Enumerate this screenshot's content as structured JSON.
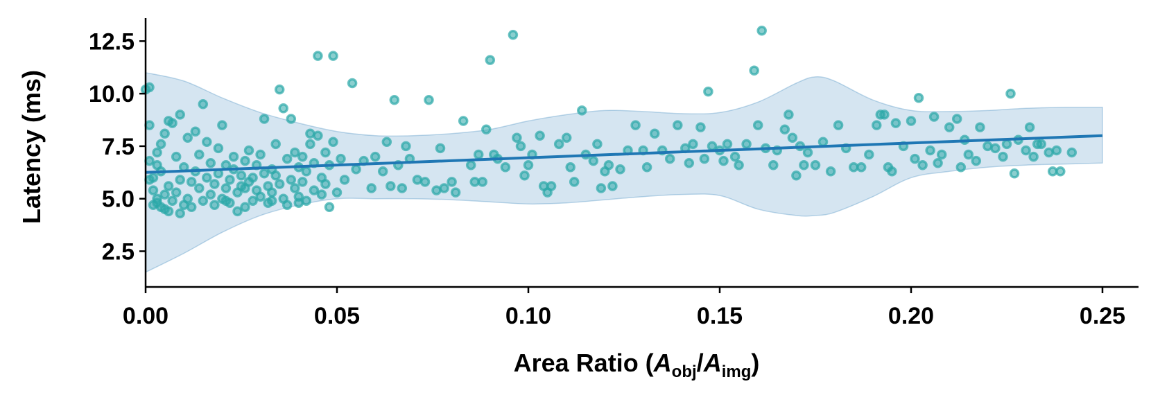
{
  "chart_data": {
    "type": "scatter",
    "title": "",
    "xlabel": "Area Ratio (A_obj/A_img)",
    "xlabel_parts": {
      "prefix": "Area Ratio (",
      "A1": "A",
      "sub1": "obj",
      "slash": "/",
      "A2": "A",
      "sub2": "img",
      "suffix": ")"
    },
    "ylabel": "Latency (ms)",
    "xlim": [
      0.0,
      0.26
    ],
    "ylim": [
      0.8,
      13.6
    ],
    "xticks": [
      0.0,
      0.05,
      0.1,
      0.15,
      0.2,
      0.25
    ],
    "xtick_labels": [
      "0.00",
      "0.05",
      "0.10",
      "0.15",
      "0.20",
      "0.25"
    ],
    "yticks": [
      2.5,
      5.0,
      7.5,
      10.0,
      12.5
    ],
    "ytick_labels": [
      "2.5",
      "5.0",
      "7.5",
      "10.0",
      "12.5"
    ],
    "grid": false,
    "colors": {
      "points": "#2ba8a8",
      "line": "#1f77b4",
      "band": "#1f77b4"
    },
    "regression": {
      "x": [
        0.0,
        0.25
      ],
      "y": [
        6.25,
        8.0
      ]
    },
    "confidence_band": {
      "x": [
        0.0,
        0.01,
        0.02,
        0.03,
        0.04,
        0.05,
        0.06,
        0.07,
        0.08,
        0.09,
        0.1,
        0.11,
        0.12,
        0.13,
        0.14,
        0.15,
        0.16,
        0.17,
        0.175,
        0.18,
        0.19,
        0.2,
        0.21,
        0.22,
        0.23,
        0.24,
        0.25
      ],
      "upper": [
        11.0,
        10.6,
        9.8,
        9.1,
        8.6,
        8.2,
        8.0,
        8.0,
        8.1,
        8.3,
        8.7,
        9.0,
        9.2,
        9.15,
        9.05,
        9.1,
        9.6,
        10.5,
        10.8,
        10.6,
        9.7,
        9.2,
        9.15,
        9.2,
        9.3,
        9.35,
        9.35
      ],
      "lower": [
        1.5,
        2.4,
        3.4,
        4.2,
        4.7,
        5.0,
        5.0,
        5.0,
        4.95,
        4.85,
        4.75,
        4.8,
        4.95,
        5.1,
        5.2,
        5.15,
        4.5,
        4.2,
        4.2,
        4.35,
        5.1,
        6.0,
        6.3,
        6.5,
        6.6,
        6.65,
        6.7
      ]
    },
    "series": [
      {
        "name": "samples",
        "points": [
          [
            0.0,
            10.2
          ],
          [
            0.001,
            10.3
          ],
          [
            0.001,
            8.5
          ],
          [
            0.001,
            6.8
          ],
          [
            0.002,
            6.0
          ],
          [
            0.002,
            5.4
          ],
          [
            0.003,
            5.0
          ],
          [
            0.003,
            4.8
          ],
          [
            0.004,
            4.6
          ],
          [
            0.004,
            6.3
          ],
          [
            0.005,
            5.2
          ],
          [
            0.005,
            4.5
          ],
          [
            0.006,
            5.6
          ],
          [
            0.006,
            4.4
          ],
          [
            0.007,
            4.9
          ],
          [
            0.008,
            5.3
          ],
          [
            0.008,
            7.0
          ],
          [
            0.009,
            5.9
          ],
          [
            0.009,
            4.3
          ],
          [
            0.01,
            6.5
          ],
          [
            0.003,
            7.2
          ],
          [
            0.004,
            7.6
          ],
          [
            0.005,
            8.1
          ],
          [
            0.006,
            8.7
          ],
          [
            0.007,
            8.6
          ],
          [
            0.009,
            9.0
          ],
          [
            0.011,
            7.9
          ],
          [
            0.011,
            5.0
          ],
          [
            0.012,
            5.8
          ],
          [
            0.012,
            4.6
          ],
          [
            0.013,
            6.3
          ],
          [
            0.013,
            8.2
          ],
          [
            0.014,
            5.5
          ],
          [
            0.014,
            7.1
          ],
          [
            0.015,
            9.5
          ],
          [
            0.015,
            4.9
          ],
          [
            0.016,
            6.0
          ],
          [
            0.016,
            7.7
          ],
          [
            0.017,
            5.2
          ],
          [
            0.017,
            6.7
          ],
          [
            0.018,
            5.7
          ],
          [
            0.018,
            4.7
          ],
          [
            0.019,
            6.2
          ],
          [
            0.019,
            7.4
          ],
          [
            0.02,
            5.0
          ],
          [
            0.02,
            8.5
          ],
          [
            0.021,
            5.5
          ],
          [
            0.021,
            6.6
          ],
          [
            0.022,
            4.8
          ],
          [
            0.022,
            5.9
          ],
          [
            0.023,
            6.4
          ],
          [
            0.023,
            7.0
          ],
          [
            0.024,
            5.3
          ],
          [
            0.024,
            4.4
          ],
          [
            0.025,
            6.1
          ],
          [
            0.025,
            5.6
          ],
          [
            0.026,
            4.6
          ],
          [
            0.026,
            6.8
          ],
          [
            0.027,
            5.8
          ],
          [
            0.027,
            7.3
          ],
          [
            0.028,
            4.9
          ],
          [
            0.028,
            6.0
          ],
          [
            0.029,
            5.4
          ],
          [
            0.029,
            6.6
          ],
          [
            0.03,
            5.1
          ],
          [
            0.03,
            7.1
          ],
          [
            0.031,
            8.8
          ],
          [
            0.031,
            6.2
          ],
          [
            0.032,
            5.6
          ],
          [
            0.032,
            4.8
          ],
          [
            0.033,
            6.4
          ],
          [
            0.033,
            5.3
          ],
          [
            0.034,
            7.6
          ],
          [
            0.034,
            6.1
          ],
          [
            0.035,
            5.7
          ],
          [
            0.035,
            10.2
          ],
          [
            0.036,
            9.3
          ],
          [
            0.036,
            5.0
          ],
          [
            0.037,
            6.9
          ],
          [
            0.037,
            4.7
          ],
          [
            0.038,
            5.9
          ],
          [
            0.038,
            8.8
          ],
          [
            0.039,
            7.2
          ],
          [
            0.039,
            5.5
          ],
          [
            0.04,
            6.5
          ],
          [
            0.04,
            5.1
          ],
          [
            0.041,
            7.0
          ],
          [
            0.041,
            5.8
          ],
          [
            0.042,
            6.3
          ],
          [
            0.042,
            4.9
          ],
          [
            0.043,
            8.1
          ],
          [
            0.043,
            7.6
          ],
          [
            0.044,
            5.4
          ],
          [
            0.044,
            6.7
          ],
          [
            0.045,
            11.8
          ],
          [
            0.045,
            8.0
          ],
          [
            0.046,
            6.0
          ],
          [
            0.046,
            5.2
          ],
          [
            0.047,
            7.2
          ],
          [
            0.047,
            5.7
          ],
          [
            0.048,
            4.6
          ],
          [
            0.048,
            6.6
          ],
          [
            0.049,
            11.8
          ],
          [
            0.049,
            7.7
          ],
          [
            0.05,
            5.3
          ],
          [
            0.051,
            6.9
          ],
          [
            0.052,
            5.9
          ],
          [
            0.054,
            10.5
          ],
          [
            0.055,
            6.4
          ],
          [
            0.057,
            6.8
          ],
          [
            0.059,
            5.5
          ],
          [
            0.06,
            7.0
          ],
          [
            0.062,
            6.3
          ],
          [
            0.063,
            7.7
          ],
          [
            0.064,
            5.6
          ],
          [
            0.065,
            9.7
          ],
          [
            0.066,
            6.6
          ],
          [
            0.067,
            5.5
          ],
          [
            0.068,
            7.5
          ],
          [
            0.069,
            6.9
          ],
          [
            0.071,
            5.9
          ],
          [
            0.073,
            5.8
          ],
          [
            0.074,
            9.7
          ],
          [
            0.076,
            5.4
          ],
          [
            0.077,
            7.4
          ],
          [
            0.078,
            5.5
          ],
          [
            0.08,
            5.8
          ],
          [
            0.081,
            5.3
          ],
          [
            0.083,
            8.7
          ],
          [
            0.085,
            6.6
          ],
          [
            0.086,
            5.8
          ],
          [
            0.087,
            7.1
          ],
          [
            0.088,
            5.8
          ],
          [
            0.089,
            8.3
          ],
          [
            0.09,
            11.6
          ],
          [
            0.091,
            7.1
          ],
          [
            0.092,
            6.9
          ],
          [
            0.094,
            6.5
          ],
          [
            0.096,
            12.8
          ],
          [
            0.097,
            7.9
          ],
          [
            0.098,
            7.5
          ],
          [
            0.099,
            6.1
          ],
          [
            0.1,
            6.6
          ],
          [
            0.101,
            7.1
          ],
          [
            0.103,
            8.0
          ],
          [
            0.104,
            5.6
          ],
          [
            0.105,
            5.3
          ],
          [
            0.106,
            5.6
          ],
          [
            0.108,
            7.6
          ],
          [
            0.11,
            7.9
          ],
          [
            0.111,
            6.5
          ],
          [
            0.112,
            5.8
          ],
          [
            0.114,
            9.2
          ],
          [
            0.115,
            7.1
          ],
          [
            0.117,
            6.8
          ],
          [
            0.118,
            7.6
          ],
          [
            0.119,
            5.5
          ],
          [
            0.12,
            6.3
          ],
          [
            0.121,
            6.6
          ],
          [
            0.122,
            5.6
          ],
          [
            0.124,
            6.4
          ],
          [
            0.126,
            7.3
          ],
          [
            0.128,
            8.5
          ],
          [
            0.13,
            7.3
          ],
          [
            0.131,
            6.5
          ],
          [
            0.133,
            8.1
          ],
          [
            0.135,
            7.3
          ],
          [
            0.137,
            6.9
          ],
          [
            0.139,
            8.5
          ],
          [
            0.141,
            7.4
          ],
          [
            0.142,
            6.7
          ],
          [
            0.143,
            7.6
          ],
          [
            0.145,
            8.4
          ],
          [
            0.146,
            6.9
          ],
          [
            0.147,
            10.1
          ],
          [
            0.148,
            7.5
          ],
          [
            0.15,
            7.3
          ],
          [
            0.151,
            6.8
          ],
          [
            0.152,
            7.6
          ],
          [
            0.154,
            7.0
          ],
          [
            0.155,
            6.6
          ],
          [
            0.157,
            7.6
          ],
          [
            0.159,
            11.1
          ],
          [
            0.16,
            8.5
          ],
          [
            0.161,
            13.0
          ],
          [
            0.162,
            7.4
          ],
          [
            0.164,
            6.6
          ],
          [
            0.165,
            7.3
          ],
          [
            0.167,
            8.3
          ],
          [
            0.168,
            9.0
          ],
          [
            0.169,
            7.9
          ],
          [
            0.17,
            6.1
          ],
          [
            0.171,
            7.5
          ],
          [
            0.172,
            6.6
          ],
          [
            0.173,
            7.2
          ],
          [
            0.175,
            6.6
          ],
          [
            0.177,
            7.7
          ],
          [
            0.179,
            6.3
          ],
          [
            0.181,
            8.5
          ],
          [
            0.183,
            7.4
          ],
          [
            0.185,
            6.5
          ],
          [
            0.187,
            6.5
          ],
          [
            0.189,
            7.1
          ],
          [
            0.191,
            8.5
          ],
          [
            0.192,
            9.0
          ],
          [
            0.193,
            9.0
          ],
          [
            0.194,
            6.5
          ],
          [
            0.195,
            6.3
          ],
          [
            0.196,
            8.6
          ],
          [
            0.198,
            7.5
          ],
          [
            0.2,
            8.7
          ],
          [
            0.201,
            6.9
          ],
          [
            0.202,
            9.8
          ],
          [
            0.203,
            6.6
          ],
          [
            0.205,
            7.3
          ],
          [
            0.206,
            8.9
          ],
          [
            0.207,
            6.7
          ],
          [
            0.208,
            7.1
          ],
          [
            0.21,
            8.4
          ],
          [
            0.212,
            8.8
          ],
          [
            0.213,
            6.5
          ],
          [
            0.214,
            7.8
          ],
          [
            0.215,
            7.1
          ],
          [
            0.217,
            6.8
          ],
          [
            0.218,
            8.4
          ],
          [
            0.22,
            7.5
          ],
          [
            0.222,
            7.4
          ],
          [
            0.224,
            7.0
          ],
          [
            0.225,
            7.6
          ],
          [
            0.226,
            10.0
          ],
          [
            0.227,
            6.2
          ],
          [
            0.228,
            7.8
          ],
          [
            0.23,
            7.3
          ],
          [
            0.231,
            8.4
          ],
          [
            0.232,
            7.0
          ],
          [
            0.233,
            7.6
          ],
          [
            0.234,
            7.6
          ],
          [
            0.236,
            7.2
          ],
          [
            0.237,
            6.3
          ],
          [
            0.238,
            7.3
          ],
          [
            0.239,
            6.3
          ],
          [
            0.242,
            7.2
          ],
          [
            0.001,
            5.9
          ],
          [
            0.002,
            4.7
          ],
          [
            0.003,
            6.6
          ],
          [
            0.01,
            4.7
          ],
          [
            0.021,
            4.9
          ],
          [
            0.026,
            5.5
          ],
          [
            0.033,
            4.9
          ],
          [
            0.04,
            4.8
          ]
        ]
      }
    ]
  }
}
